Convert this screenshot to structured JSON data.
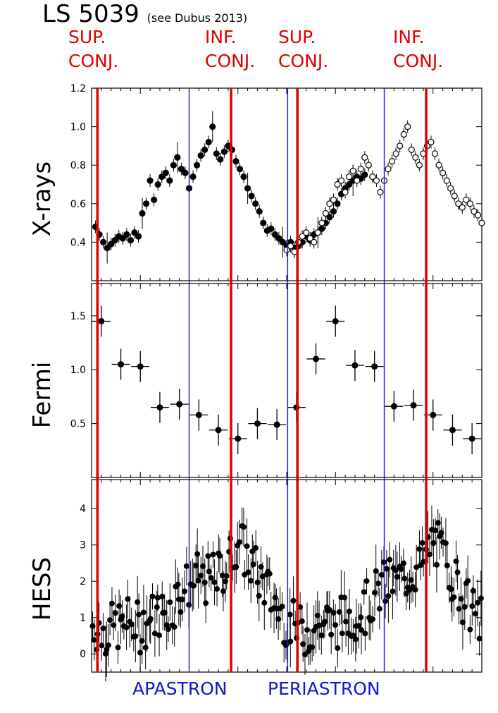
{
  "title": "LS 5039",
  "subtitle": "(see Dubus 2013)",
  "top_labels": [
    {
      "line1": "SUP.",
      "line2": "CONJ."
    },
    {
      "line1": "INF.",
      "line2": "CONJ."
    },
    {
      "line1": "SUP.",
      "line2": "CONJ."
    },
    {
      "line1": "INF.",
      "line2": "CONJ."
    }
  ],
  "bottom_labels": {
    "apastron": "APASTRON",
    "periastron": "PERIASTRON"
  },
  "colors": {
    "conjunction": "#e00000",
    "apsis": "#1515d0",
    "data": "#000000"
  },
  "chart_data": [
    {
      "type": "scatter",
      "ylabel": "X-rays",
      "ylim": [
        0.2,
        1.2
      ],
      "yticks": [
        "0.4",
        "0.6",
        "0.8",
        "1.0",
        "1.2"
      ],
      "x_range": [
        0,
        2
      ],
      "series": [
        {
          "style": "filled",
          "x": [
            0.02,
            0.04,
            0.06,
            0.08,
            0.1,
            0.12,
            0.14,
            0.16,
            0.18,
            0.2,
            0.22,
            0.24,
            0.26,
            0.28,
            0.3,
            0.32,
            0.34,
            0.36,
            0.38,
            0.4,
            0.42,
            0.44,
            0.46,
            0.48,
            0.5,
            0.52,
            0.54,
            0.56,
            0.58,
            0.6,
            0.62,
            0.64,
            0.66,
            0.68,
            0.7,
            0.72,
            0.74,
            0.76,
            0.78,
            0.8,
            0.82,
            0.84,
            0.86,
            0.88,
            0.9,
            0.92,
            0.94,
            0.96,
            0.98,
            1.0,
            1.02,
            1.04,
            1.06,
            1.08,
            1.1,
            1.12,
            1.14,
            1.16,
            1.18,
            1.2,
            1.22,
            1.24,
            1.26,
            1.28,
            1.3,
            1.32,
            1.34,
            1.36,
            1.38,
            1.4
          ],
          "y": [
            0.48,
            0.44,
            0.4,
            0.37,
            0.39,
            0.41,
            0.43,
            0.42,
            0.44,
            0.41,
            0.45,
            0.43,
            0.55,
            0.6,
            0.72,
            0.62,
            0.7,
            0.74,
            0.76,
            0.72,
            0.8,
            0.84,
            0.78,
            0.76,
            0.68,
            0.74,
            0.8,
            0.85,
            0.88,
            0.92,
            1.0,
            0.86,
            0.83,
            0.87,
            0.9,
            0.88,
            0.82,
            0.78,
            0.74,
            0.68,
            0.64,
            0.6,
            0.56,
            0.5,
            0.46,
            0.47,
            0.44,
            0.42,
            0.4,
            0.38,
            0.4,
            0.37,
            0.38,
            0.4,
            0.43,
            0.41,
            0.44,
            0.45,
            0.47,
            0.5,
            0.53,
            0.56,
            0.6,
            0.65,
            0.68,
            0.7,
            0.72,
            0.74,
            0.73,
            0.75
          ]
        },
        {
          "style": "open",
          "x": [
            1.0,
            1.02,
            1.04,
            1.06,
            1.08,
            1.1,
            1.12,
            1.14,
            1.16,
            1.18,
            1.2,
            1.22,
            1.24,
            1.26,
            1.28,
            1.3,
            1.32,
            1.34,
            1.36,
            1.38,
            1.4,
            1.42,
            1.44,
            1.46,
            1.48,
            1.5,
            1.52,
            1.54,
            1.56,
            1.58,
            1.6,
            1.62,
            1.64,
            1.66,
            1.68,
            1.7,
            1.72,
            1.74,
            1.76,
            1.78,
            1.8,
            1.82,
            1.84,
            1.86,
            1.88,
            1.9,
            1.92,
            1.94,
            1.96,
            1.98,
            2.0
          ],
          "y": [
            0.36,
            0.38,
            0.35,
            0.4,
            0.43,
            0.45,
            0.42,
            0.4,
            0.45,
            0.5,
            0.55,
            0.6,
            0.62,
            0.7,
            0.72,
            0.66,
            0.74,
            0.77,
            0.72,
            0.78,
            0.84,
            0.8,
            0.74,
            0.72,
            0.66,
            0.72,
            0.78,
            0.82,
            0.86,
            0.9,
            0.96,
            1.0,
            0.88,
            0.84,
            0.8,
            0.86,
            0.9,
            0.92,
            0.86,
            0.8,
            0.76,
            0.72,
            0.68,
            0.64,
            0.6,
            0.58,
            0.62,
            0.6,
            0.56,
            0.54,
            0.5
          ]
        }
      ]
    },
    {
      "type": "scatter",
      "ylabel": "Fermi",
      "ylim": [
        0.0,
        1.8
      ],
      "yticks": [
        "0.5",
        "1.0",
        "1.5"
      ],
      "x_range": [
        0,
        2
      ],
      "x": [
        0.05,
        0.15,
        0.25,
        0.35,
        0.45,
        0.55,
        0.65,
        0.75,
        0.85,
        0.95,
        1.05,
        1.15,
        1.25,
        1.35,
        1.45,
        1.55,
        1.65,
        1.75,
        1.85,
        1.95
      ],
      "y": [
        1.45,
        1.05,
        1.03,
        0.65,
        0.68,
        0.58,
        0.44,
        0.36,
        0.5,
        0.49,
        0.65,
        1.1,
        1.45,
        1.04,
        1.03,
        0.66,
        0.67,
        0.58,
        0.44,
        0.36
      ]
    },
    {
      "type": "scatter",
      "ylabel": "HESS",
      "ylim": [
        -0.5,
        4.8
      ],
      "yticks": [
        "0",
        "1",
        "2",
        "3",
        "4"
      ],
      "x_range": [
        0,
        2
      ],
      "phase_map": [
        [
          0.0,
          0.8
        ],
        [
          0.05,
          0.6
        ],
        [
          0.1,
          0.7
        ],
        [
          0.15,
          0.8
        ],
        [
          0.2,
          0.9
        ],
        [
          0.25,
          0.7
        ],
        [
          0.3,
          1.0
        ],
        [
          0.35,
          1.1
        ],
        [
          0.4,
          1.2
        ],
        [
          0.45,
          1.7
        ],
        [
          0.5,
          1.9
        ],
        [
          0.55,
          2.1
        ],
        [
          0.6,
          2.0
        ],
        [
          0.65,
          2.2
        ],
        [
          0.7,
          2.4
        ],
        [
          0.75,
          3.2
        ],
        [
          0.8,
          2.6
        ],
        [
          0.85,
          2.2
        ],
        [
          0.9,
          1.8
        ],
        [
          0.95,
          1.3
        ],
        [
          1.0,
          0.9
        ],
        [
          1.05,
          0.7
        ],
        [
          1.1,
          0.6
        ],
        [
          1.15,
          0.8
        ],
        [
          1.2,
          0.9
        ],
        [
          1.25,
          0.8
        ],
        [
          1.3,
          1.0
        ],
        [
          1.35,
          1.1
        ],
        [
          1.4,
          1.2
        ],
        [
          1.45,
          1.6
        ],
        [
          1.5,
          1.9
        ],
        [
          1.55,
          2.0
        ],
        [
          1.6,
          2.1
        ],
        [
          1.65,
          2.3
        ],
        [
          1.7,
          2.5
        ],
        [
          1.75,
          3.2
        ],
        [
          1.8,
          2.7
        ],
        [
          1.85,
          2.2
        ],
        [
          1.9,
          1.6
        ],
        [
          1.95,
          1.2
        ],
        [
          2.0,
          0.9
        ]
      ]
    }
  ]
}
